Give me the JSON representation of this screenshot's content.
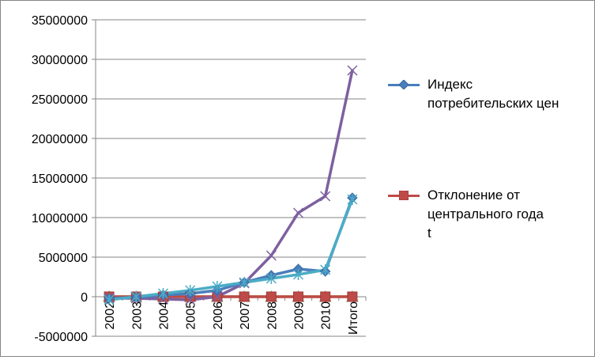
{
  "chart_data": {
    "type": "line",
    "categories": [
      "2002",
      "2003",
      "2004",
      "2005",
      "2006",
      "2007",
      "2008",
      "2009",
      "2010",
      "Итого"
    ],
    "ylim": [
      -5000000,
      35000000
    ],
    "yticks": [
      "35000000",
      "30000000",
      "25000000",
      "20000000",
      "15000000",
      "10000000",
      "5000000",
      "0",
      "-5000000"
    ],
    "ytick_values": [
      35000000,
      30000000,
      25000000,
      20000000,
      15000000,
      10000000,
      5000000,
      0,
      -5000000
    ],
    "grid": "horizontal",
    "legend_position": "right",
    "series": [
      {
        "name": "Индекс потребительских цен",
        "color": "#4a7ebb",
        "marker": "diamond",
        "values": [
          -200000,
          -100000,
          200000,
          400000,
          800000,
          1800000,
          2700000,
          3500000,
          3200000,
          12500000
        ]
      },
      {
        "name": "Отклонение от центрального года t",
        "color": "#be4b48",
        "marker": "square",
        "values": [
          0,
          0,
          0,
          0,
          0,
          0,
          0,
          0,
          0,
          0
        ]
      },
      {
        "color": "#98b954",
        "marker": "triangle",
        "values": [
          0,
          0,
          0,
          0,
          0,
          0,
          0,
          0,
          0,
          0
        ]
      },
      {
        "color": "#7d60a0",
        "marker": "x",
        "values": [
          -200000,
          -200000,
          -300000,
          -400000,
          0,
          1700000,
          5200000,
          10600000,
          12700000,
          28600000
        ]
      },
      {
        "color": "#4bacc6",
        "marker": "star",
        "values": [
          -400000,
          0,
          400000,
          800000,
          1300000,
          1800000,
          2300000,
          2800000,
          3400000,
          12300000
        ]
      }
    ]
  },
  "legend": {
    "items": [
      {
        "lines": [
          "Индекс",
          "потребительских цен"
        ]
      },
      {
        "lines": [
          "Отклонение от",
          "центрального года",
          "t"
        ]
      }
    ]
  }
}
